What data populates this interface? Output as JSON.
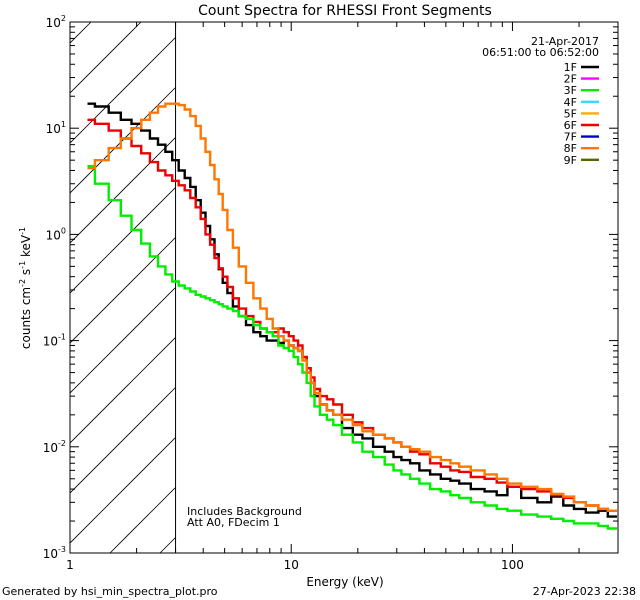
{
  "chart_data": {
    "type": "line",
    "title": "Count Spectra for RHESSI Front Segments",
    "xlabel": "Energy (keV)",
    "ylabel": "counts cm",
    "ylabel_parts": {
      "base": "counts cm",
      "sup1": "-2",
      "mid1": " s",
      "sup2": "-1",
      "mid2": " keV",
      "sup3": "-1"
    },
    "xscale": "log",
    "yscale": "log",
    "xlim": [
      1,
      300
    ],
    "ylim": [
      0.001,
      100
    ],
    "x_major_ticks": [
      {
        "v": 1,
        "label": "1"
      },
      {
        "v": 10,
        "label": "10"
      },
      {
        "v": 100,
        "label": "100"
      }
    ],
    "y_major_ticks": [
      {
        "v": 0.001,
        "base": "10",
        "exp": "-3"
      },
      {
        "v": 0.01,
        "base": "10",
        "exp": "-2"
      },
      {
        "v": 0.1,
        "base": "10",
        "exp": "-1"
      },
      {
        "v": 1,
        "base": "10",
        "exp": "0"
      },
      {
        "v": 10,
        "base": "10",
        "exp": "1"
      },
      {
        "v": 100,
        "base": "10",
        "exp": "2"
      }
    ],
    "hatched_region_xmax": 3,
    "legend": {
      "date": "21-Apr-2017",
      "time_range": "06:51:00 to 06:52:00",
      "entries": [
        {
          "name": "1F",
          "color": "#000000"
        },
        {
          "name": "2F",
          "color": "#ff00ff"
        },
        {
          "name": "3F",
          "color": "#00ee00"
        },
        {
          "name": "4F",
          "color": "#33ddff"
        },
        {
          "name": "5F",
          "color": "#ffaa00"
        },
        {
          "name": "6F",
          "color": "#ee0000"
        },
        {
          "name": "7F",
          "color": "#0000cc"
        },
        {
          "name": "8F",
          "color": "#ff7700"
        },
        {
          "name": "9F",
          "color": "#556600"
        }
      ]
    },
    "annotations": [
      "Includes Background",
      "Att A0, FDecim 1"
    ],
    "footer_left": "Generated by hsi_min_spectra_plot.pro",
    "footer_right": "27-Apr-2023 22:38",
    "series": [
      {
        "name": "1F",
        "color": "#000000",
        "x": [
          1.2,
          1.4,
          1.6,
          1.8,
          2.0,
          2.2,
          2.4,
          2.6,
          2.8,
          3.0,
          3.2,
          3.4,
          3.6,
          3.8,
          4.0,
          4.2,
          4.4,
          4.6,
          4.8,
          5.0,
          5.3,
          5.6,
          6.0,
          6.5,
          7.0,
          7.5,
          8.0,
          8.5,
          9.0,
          9.5,
          10,
          10.5,
          11,
          11.5,
          12,
          12.5,
          13,
          14,
          15,
          16,
          18,
          20,
          22,
          25,
          28,
          30,
          33,
          36,
          40,
          45,
          50,
          55,
          60,
          70,
          80,
          90,
          100,
          120,
          140,
          160,
          180,
          200,
          230,
          260,
          280
        ],
        "values": [
          17,
          16,
          14,
          12,
          11,
          9.5,
          8,
          7,
          6,
          5,
          4,
          3.4,
          2.8,
          2.1,
          1.6,
          1.2,
          0.9,
          0.65,
          0.47,
          0.35,
          0.28,
          0.21,
          0.17,
          0.14,
          0.12,
          0.11,
          0.1,
          0.1,
          0.095,
          0.1,
          0.09,
          0.085,
          0.08,
          0.07,
          0.05,
          0.04,
          0.03,
          0.025,
          0.022,
          0.02,
          0.015,
          0.013,
          0.012,
          0.01,
          0.009,
          0.008,
          0.0075,
          0.007,
          0.006,
          0.0055,
          0.005,
          0.0048,
          0.0045,
          0.004,
          0.0038,
          0.0035,
          0.0042,
          0.0033,
          0.003,
          0.0034,
          0.0028,
          0.0026,
          0.0024,
          0.0025,
          0.0022
        ]
      },
      {
        "name": "6F",
        "color": "#ee0000",
        "x": [
          1.2,
          1.4,
          1.6,
          1.8,
          2.0,
          2.2,
          2.4,
          2.6,
          2.8,
          3.0,
          3.2,
          3.4,
          3.6,
          3.8,
          4.0,
          4.2,
          4.4,
          4.6,
          4.8,
          5.0,
          5.3,
          5.6,
          6.0,
          6.5,
          7.0,
          7.5,
          8.0,
          8.5,
          9.0,
          9.5,
          10,
          10.5,
          11,
          11.5,
          12,
          12.5,
          13,
          14,
          15,
          16,
          18,
          20,
          22,
          25,
          28,
          30,
          33,
          36,
          40,
          45,
          50,
          55,
          60,
          70,
          80,
          90,
          100,
          120,
          140,
          160,
          180,
          200,
          230,
          260,
          280
        ],
        "values": [
          12,
          11,
          9.5,
          8,
          6.8,
          5.8,
          4.8,
          4,
          3.6,
          3.2,
          2.9,
          2.6,
          2.2,
          1.8,
          1.4,
          1.0,
          0.8,
          0.6,
          0.48,
          0.4,
          0.32,
          0.25,
          0.2,
          0.17,
          0.15,
          0.13,
          0.12,
          0.12,
          0.13,
          0.12,
          0.11,
          0.1,
          0.09,
          0.07,
          0.055,
          0.045,
          0.035,
          0.03,
          0.028,
          0.025,
          0.02,
          0.017,
          0.015,
          0.013,
          0.012,
          0.011,
          0.01,
          0.009,
          0.0085,
          0.007,
          0.0065,
          0.006,
          0.0058,
          0.0052,
          0.005,
          0.0046,
          0.0042,
          0.004,
          0.0038,
          0.0035,
          0.0033,
          0.003,
          0.0028,
          0.0026,
          0.0025
        ]
      },
      {
        "name": "3F",
        "color": "#00ee00",
        "x": [
          1.2,
          1.4,
          1.6,
          1.8,
          2.0,
          2.2,
          2.4,
          2.6,
          2.8,
          3.0,
          3.2,
          3.4,
          3.6,
          3.8,
          4.0,
          4.2,
          4.4,
          4.6,
          4.8,
          5.0,
          5.3,
          5.6,
          6.0,
          6.5,
          7.0,
          7.5,
          8.0,
          8.5,
          9.0,
          9.5,
          10,
          10.5,
          11,
          11.5,
          12,
          12.5,
          13,
          14,
          15,
          16,
          18,
          20,
          22,
          25,
          28,
          30,
          33,
          36,
          40,
          45,
          50,
          55,
          60,
          70,
          80,
          90,
          100,
          120,
          140,
          160,
          180,
          200,
          230,
          260,
          280
        ],
        "values": [
          4.4,
          3.0,
          2.1,
          1.5,
          1.1,
          0.82,
          0.62,
          0.5,
          0.42,
          0.36,
          0.33,
          0.31,
          0.29,
          0.27,
          0.26,
          0.25,
          0.24,
          0.23,
          0.22,
          0.21,
          0.2,
          0.19,
          0.17,
          0.16,
          0.14,
          0.13,
          0.12,
          0.11,
          0.09,
          0.085,
          0.08,
          0.07,
          0.06,
          0.05,
          0.04,
          0.03,
          0.024,
          0.02,
          0.018,
          0.016,
          0.013,
          0.011,
          0.009,
          0.008,
          0.0068,
          0.006,
          0.0055,
          0.005,
          0.0045,
          0.004,
          0.0038,
          0.0035,
          0.0033,
          0.003,
          0.0028,
          0.0026,
          0.0025,
          0.0023,
          0.0022,
          0.0021,
          0.002,
          0.0019,
          0.0019,
          0.0018,
          0.0017
        ]
      },
      {
        "name": "8F",
        "color": "#ff7700",
        "x": [
          1.2,
          1.4,
          1.6,
          1.8,
          2.0,
          2.2,
          2.4,
          2.6,
          2.8,
          3.0,
          3.2,
          3.4,
          3.6,
          3.8,
          4.0,
          4.2,
          4.4,
          4.6,
          4.8,
          5.0,
          5.3,
          5.6,
          6.0,
          6.5,
          7.0,
          7.5,
          8.0,
          8.5,
          9.0,
          9.5,
          10,
          10.5,
          11,
          11.5,
          12,
          12.5,
          13,
          14,
          15,
          16,
          18,
          20,
          22,
          25,
          28,
          30,
          33,
          36,
          40,
          45,
          50,
          55,
          60,
          70,
          80,
          90,
          100,
          120,
          140,
          160,
          180,
          200,
          230,
          260,
          280
        ],
        "values": [
          4.2,
          5,
          6.5,
          8,
          10,
          12,
          14,
          16,
          17,
          17,
          16.5,
          15,
          13,
          10.5,
          8,
          6,
          4.5,
          3.3,
          2.4,
          1.7,
          1.1,
          0.75,
          0.5,
          0.35,
          0.25,
          0.2,
          0.16,
          0.13,
          0.11,
          0.1,
          0.09,
          0.085,
          0.08,
          0.065,
          0.05,
          0.04,
          0.032,
          0.025,
          0.022,
          0.02,
          0.018,
          0.016,
          0.014,
          0.013,
          0.012,
          0.011,
          0.01,
          0.0095,
          0.009,
          0.008,
          0.0075,
          0.007,
          0.0065,
          0.006,
          0.0055,
          0.005,
          0.0045,
          0.0042,
          0.004,
          0.0036,
          0.0034,
          0.003,
          0.0028,
          0.0026,
          0.0025
        ]
      }
    ]
  }
}
